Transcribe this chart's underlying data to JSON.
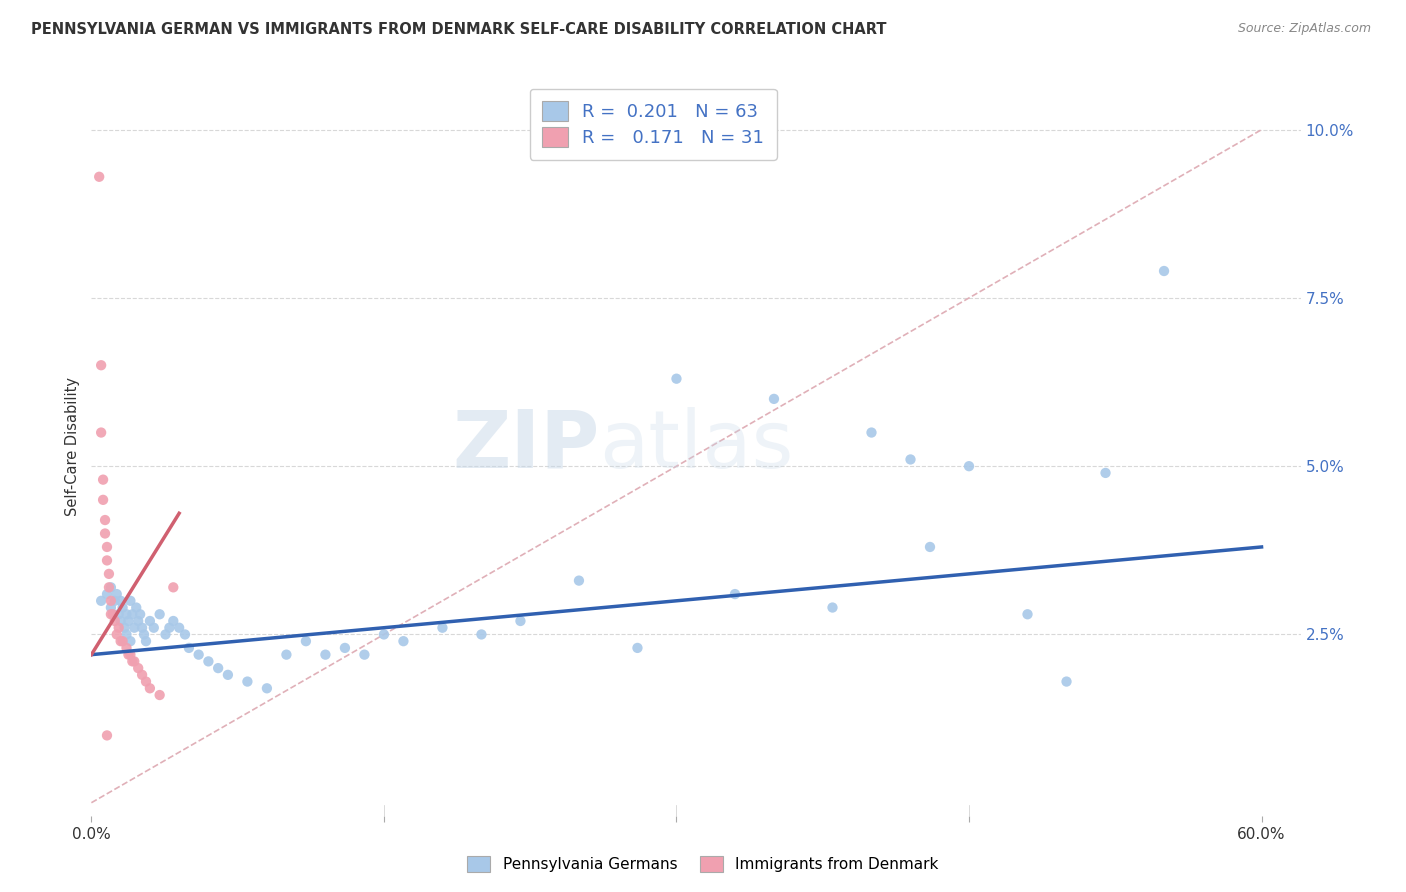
{
  "title": "PENNSYLVANIA GERMAN VS IMMIGRANTS FROM DENMARK SELF-CARE DISABILITY CORRELATION CHART",
  "source": "Source: ZipAtlas.com",
  "ylabel": "Self-Care Disability",
  "yticks": [
    0.025,
    0.05,
    0.075,
    0.1
  ],
  "ytick_labels": [
    "2.5%",
    "5.0%",
    "7.5%",
    "10.0%"
  ],
  "xlim": [
    0.0,
    0.62
  ],
  "ylim": [
    -0.002,
    0.108
  ],
  "watermark_zip": "ZIP",
  "watermark_atlas": "atlas",
  "blue_line_x": [
    0.0,
    0.6
  ],
  "blue_line_y_start": 0.022,
  "blue_line_y_end": 0.038,
  "pink_line_x": [
    0.0,
    0.045
  ],
  "pink_line_y_start": 0.022,
  "pink_line_y_end": 0.043,
  "diagonal_line_x": [
    0.0,
    0.6
  ],
  "diagonal_line_y_start": 0.0,
  "diagonal_line_y_end": 0.1,
  "bg_color": "#ffffff",
  "scatter_blue": "#a8c8e8",
  "scatter_pink": "#f0a0b0",
  "trend_blue": "#3060b0",
  "trend_pink": "#d06070",
  "diagonal_color": "#e0b0b8",
  "grid_color": "#d8d8d8",
  "blue_scatter": [
    [
      0.005,
      0.03
    ],
    [
      0.008,
      0.031
    ],
    [
      0.01,
      0.032
    ],
    [
      0.01,
      0.029
    ],
    [
      0.012,
      0.03
    ],
    [
      0.013,
      0.031
    ],
    [
      0.014,
      0.028
    ],
    [
      0.015,
      0.03
    ],
    [
      0.015,
      0.027
    ],
    [
      0.016,
      0.029
    ],
    [
      0.017,
      0.026
    ],
    [
      0.018,
      0.028
    ],
    [
      0.018,
      0.025
    ],
    [
      0.019,
      0.027
    ],
    [
      0.02,
      0.03
    ],
    [
      0.02,
      0.024
    ],
    [
      0.021,
      0.028
    ],
    [
      0.022,
      0.026
    ],
    [
      0.023,
      0.029
    ],
    [
      0.024,
      0.027
    ],
    [
      0.025,
      0.028
    ],
    [
      0.026,
      0.026
    ],
    [
      0.027,
      0.025
    ],
    [
      0.028,
      0.024
    ],
    [
      0.03,
      0.027
    ],
    [
      0.032,
      0.026
    ],
    [
      0.035,
      0.028
    ],
    [
      0.038,
      0.025
    ],
    [
      0.04,
      0.026
    ],
    [
      0.042,
      0.027
    ],
    [
      0.045,
      0.026
    ],
    [
      0.048,
      0.025
    ],
    [
      0.05,
      0.023
    ],
    [
      0.055,
      0.022
    ],
    [
      0.06,
      0.021
    ],
    [
      0.065,
      0.02
    ],
    [
      0.07,
      0.019
    ],
    [
      0.08,
      0.018
    ],
    [
      0.09,
      0.017
    ],
    [
      0.1,
      0.022
    ],
    [
      0.11,
      0.024
    ],
    [
      0.12,
      0.022
    ],
    [
      0.13,
      0.023
    ],
    [
      0.14,
      0.022
    ],
    [
      0.15,
      0.025
    ],
    [
      0.16,
      0.024
    ],
    [
      0.18,
      0.026
    ],
    [
      0.2,
      0.025
    ],
    [
      0.22,
      0.027
    ],
    [
      0.25,
      0.033
    ],
    [
      0.28,
      0.023
    ],
    [
      0.3,
      0.063
    ],
    [
      0.33,
      0.031
    ],
    [
      0.35,
      0.06
    ],
    [
      0.38,
      0.029
    ],
    [
      0.4,
      0.055
    ],
    [
      0.42,
      0.051
    ],
    [
      0.43,
      0.038
    ],
    [
      0.45,
      0.05
    ],
    [
      0.48,
      0.028
    ],
    [
      0.5,
      0.018
    ],
    [
      0.52,
      0.049
    ],
    [
      0.55,
      0.079
    ]
  ],
  "pink_scatter": [
    [
      0.004,
      0.093
    ],
    [
      0.005,
      0.065
    ],
    [
      0.005,
      0.055
    ],
    [
      0.006,
      0.048
    ],
    [
      0.006,
      0.045
    ],
    [
      0.007,
      0.042
    ],
    [
      0.007,
      0.04
    ],
    [
      0.008,
      0.038
    ],
    [
      0.008,
      0.036
    ],
    [
      0.009,
      0.034
    ],
    [
      0.009,
      0.032
    ],
    [
      0.01,
      0.03
    ],
    [
      0.01,
      0.028
    ],
    [
      0.011,
      0.028
    ],
    [
      0.012,
      0.027
    ],
    [
      0.013,
      0.025
    ],
    [
      0.014,
      0.026
    ],
    [
      0.015,
      0.024
    ],
    [
      0.016,
      0.024
    ],
    [
      0.018,
      0.023
    ],
    [
      0.019,
      0.022
    ],
    [
      0.02,
      0.022
    ],
    [
      0.021,
      0.021
    ],
    [
      0.022,
      0.021
    ],
    [
      0.024,
      0.02
    ],
    [
      0.026,
      0.019
    ],
    [
      0.028,
      0.018
    ],
    [
      0.03,
      0.017
    ],
    [
      0.035,
      0.016
    ],
    [
      0.042,
      0.032
    ],
    [
      0.008,
      0.01
    ]
  ]
}
